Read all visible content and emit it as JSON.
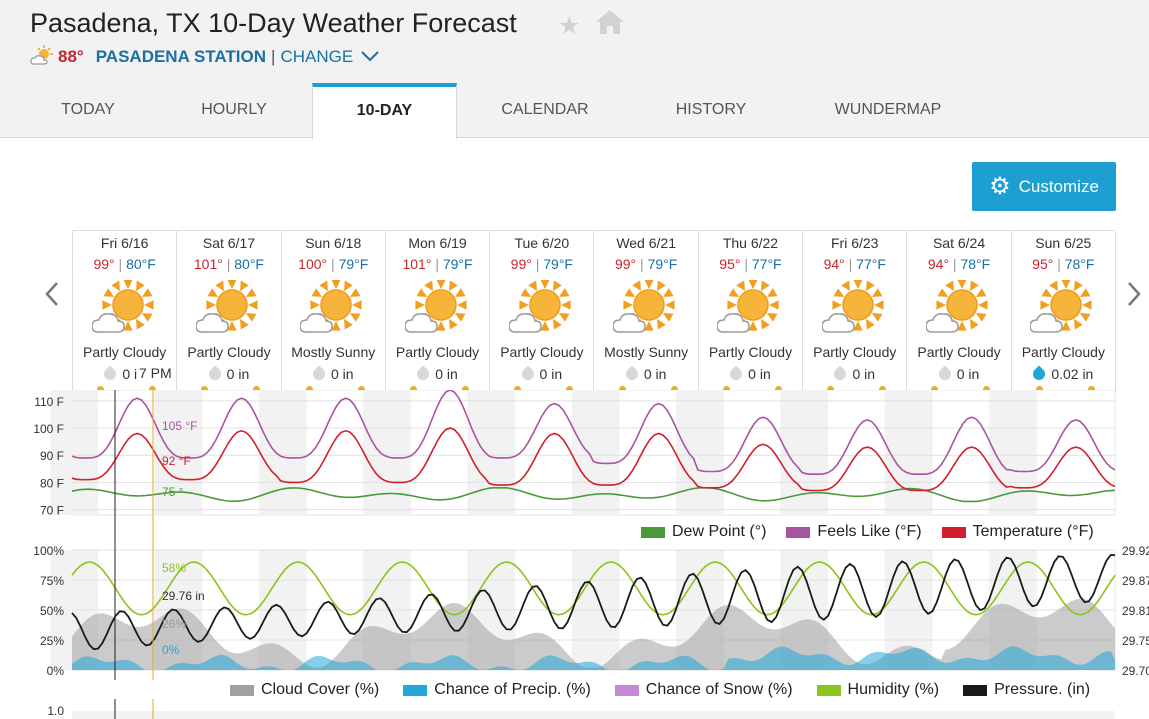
{
  "header": {
    "title": "Pasadena, TX 10-Day Weather Forecast",
    "current_temp": "88°",
    "station": "PASADENA STATION",
    "separator": "|",
    "change_label": "CHANGE"
  },
  "tabs": [
    "TODAY",
    "HOURLY",
    "10-DAY",
    "CALENDAR",
    "HISTORY",
    "WUNDERMAP"
  ],
  "active_tab": "10-DAY",
  "customize_label": "Customize",
  "days": [
    {
      "date": "Fri 6/16",
      "hi": "99°",
      "lo": "80°F",
      "cond": "Partly Cloudy",
      "precip": "0 in"
    },
    {
      "date": "Sat 6/17",
      "hi": "101°",
      "lo": "80°F",
      "cond": "Partly Cloudy",
      "precip": "0 in"
    },
    {
      "date": "Sun 6/18",
      "hi": "100°",
      "lo": "79°F",
      "cond": "Mostly Sunny",
      "precip": "0 in"
    },
    {
      "date": "Mon 6/19",
      "hi": "101°",
      "lo": "79°F",
      "cond": "Partly Cloudy",
      "precip": "0 in"
    },
    {
      "date": "Tue 6/20",
      "hi": "99°",
      "lo": "79°F",
      "cond": "Partly Cloudy",
      "precip": "0 in"
    },
    {
      "date": "Wed 6/21",
      "hi": "99°",
      "lo": "79°F",
      "cond": "Mostly Sunny",
      "precip": "0 in"
    },
    {
      "date": "Thu 6/22",
      "hi": "95°",
      "lo": "77°F",
      "cond": "Partly Cloudy",
      "precip": "0 in"
    },
    {
      "date": "Fri 6/23",
      "hi": "94°",
      "lo": "77°F",
      "cond": "Partly Cloudy",
      "precip": "0 in"
    },
    {
      "date": "Sat 6/24",
      "hi": "94°",
      "lo": "78°F",
      "cond": "Partly Cloudy",
      "precip": "0 in"
    },
    {
      "date": "Sun 6/25",
      "hi": "95°",
      "lo": "78°F",
      "cond": "Partly Cloudy",
      "precip": "0.02 in"
    }
  ],
  "hover_time": "7 PM",
  "chart_data": [
    {
      "type": "line",
      "y_ticks": [
        "110 F",
        "100 F",
        "90 F",
        "80 F",
        "70 F"
      ],
      "ylim": [
        68,
        114
      ],
      "x": "hourly, Fri 6/16 – Sun 6/25",
      "series": [
        {
          "name": "Dew Point (°)",
          "color": "#4a9a3a",
          "daily_min": 73,
          "daily_max": 78
        },
        {
          "name": "Feels Like (°F)",
          "color": "#a855a0",
          "daily_max": [
            111,
            111,
            111,
            114,
            109,
            109,
            104,
            103,
            104,
            103
          ],
          "daily_min": [
            89,
            89,
            89,
            89,
            89,
            87,
            84,
            83,
            83,
            84
          ]
        },
        {
          "name": "Temperature (°F)",
          "color": "#d0202b",
          "daily_max": [
            98,
            99,
            99,
            100,
            98,
            98,
            94,
            93,
            93,
            93
          ],
          "daily_min": [
            81,
            81,
            80,
            80,
            79,
            79,
            78,
            77,
            77,
            78
          ]
        }
      ],
      "hover_values": {
        "feels_like": "105 °F",
        "temperature": "92 °F",
        "dew_point": "75 °"
      },
      "legend": [
        "Dew Point (°)",
        "Feels Like (°F)",
        "Temperature (°F)"
      ]
    },
    {
      "type": "area",
      "y_ticks": [
        "100%",
        "75%",
        "50%",
        "25%",
        "0%"
      ],
      "y2_ticks": [
        "29.92",
        "29.87",
        "29.81",
        "29.75",
        "29.70"
      ],
      "series": [
        {
          "name": "Cloud Cover (%)",
          "color": "#a0a0a0",
          "range": [
            0,
            60
          ]
        },
        {
          "name": "Chance of Precip. (%)",
          "color": "#21a7d8",
          "range": [
            0,
            25
          ]
        },
        {
          "name": "Chance of Snow (%)",
          "color": "#c48ad6",
          "range": [
            0,
            0
          ]
        },
        {
          "name": "Humidity (%)",
          "color": "#8ac51c",
          "range": [
            45,
            92
          ]
        },
        {
          "name": "Pressure. (in)",
          "color": "#1a1a1a",
          "range": [
            29.7,
            29.92
          ]
        }
      ],
      "hover_values": {
        "humidity": "58%",
        "pressure": "29.76 in",
        "cloud_cover": "26%",
        "precip": "0%"
      },
      "legend": [
        "Cloud Cover (%)",
        "Chance of Precip. (%)",
        "Chance of Snow (%)",
        "Humidity (%)",
        "Pressure. (in)"
      ]
    },
    {
      "type": "bar",
      "y_ticks": [
        "1.0"
      ]
    }
  ]
}
